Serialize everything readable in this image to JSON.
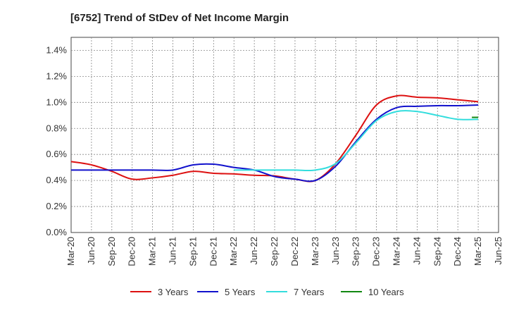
{
  "chart_data": {
    "type": "line",
    "title": "[6752]  Trend of StDev of Net Income Margin",
    "xlabel": "",
    "ylabel": "",
    "ylim": [
      0,
      1.5
    ],
    "yticks": [
      "0.0%",
      "0.2%",
      "0.4%",
      "0.6%",
      "0.8%",
      "1.0%",
      "1.2%",
      "1.4%"
    ],
    "ytick_values": [
      0,
      0.2,
      0.4,
      0.6,
      0.8,
      1.0,
      1.2,
      1.4
    ],
    "xticks": [
      "Mar-20",
      "Jun-20",
      "Sep-20",
      "Dec-20",
      "Mar-21",
      "Jun-21",
      "Sep-21",
      "Dec-21",
      "Mar-22",
      "Jun-22",
      "Sep-22",
      "Dec-22",
      "Mar-23",
      "Jun-23",
      "Sep-23",
      "Dec-23",
      "Mar-24",
      "Jun-24",
      "Sep-24",
      "Dec-24",
      "Mar-25",
      "Jun-25"
    ],
    "grid": true,
    "legend_position": "bottom",
    "x": [
      "Mar-20",
      "Jun-20",
      "Sep-20",
      "Dec-20",
      "Mar-21",
      "Jun-21",
      "Sep-21",
      "Dec-21",
      "Mar-22",
      "Jun-22",
      "Sep-22",
      "Dec-22",
      "Mar-23",
      "Jun-23",
      "Sep-23",
      "Dec-23",
      "Mar-24",
      "Jun-24",
      "Sep-24",
      "Dec-24",
      "Mar-25"
    ],
    "series": [
      {
        "name": "3 Years",
        "color": "#dd1111",
        "values": [
          0.545,
          0.52,
          0.47,
          0.41,
          0.42,
          0.44,
          0.47,
          0.455,
          0.45,
          0.44,
          0.435,
          0.41,
          0.4,
          0.53,
          0.75,
          0.98,
          1.05,
          1.04,
          1.035,
          1.02,
          1.005
        ]
      },
      {
        "name": "5 Years",
        "color": "#1111cc",
        "values": [
          0.48,
          0.48,
          0.48,
          0.48,
          0.48,
          0.48,
          0.52,
          0.525,
          0.5,
          0.48,
          0.43,
          0.41,
          0.4,
          0.51,
          0.7,
          0.87,
          0.96,
          0.97,
          0.975,
          0.975,
          0.98
        ]
      },
      {
        "name": "7 Years",
        "color": "#33dddd",
        "values": [
          null,
          null,
          null,
          null,
          null,
          null,
          null,
          null,
          0.48,
          0.48,
          0.48,
          0.48,
          0.48,
          0.53,
          0.69,
          0.86,
          0.93,
          0.93,
          0.9,
          0.87,
          0.87
        ]
      },
      {
        "name": "10 Years",
        "color": "#118811",
        "values": [
          null,
          null,
          null,
          null,
          null,
          null,
          null,
          null,
          null,
          null,
          null,
          null,
          null,
          null,
          null,
          null,
          null,
          null,
          null,
          null,
          0.885
        ]
      }
    ]
  }
}
